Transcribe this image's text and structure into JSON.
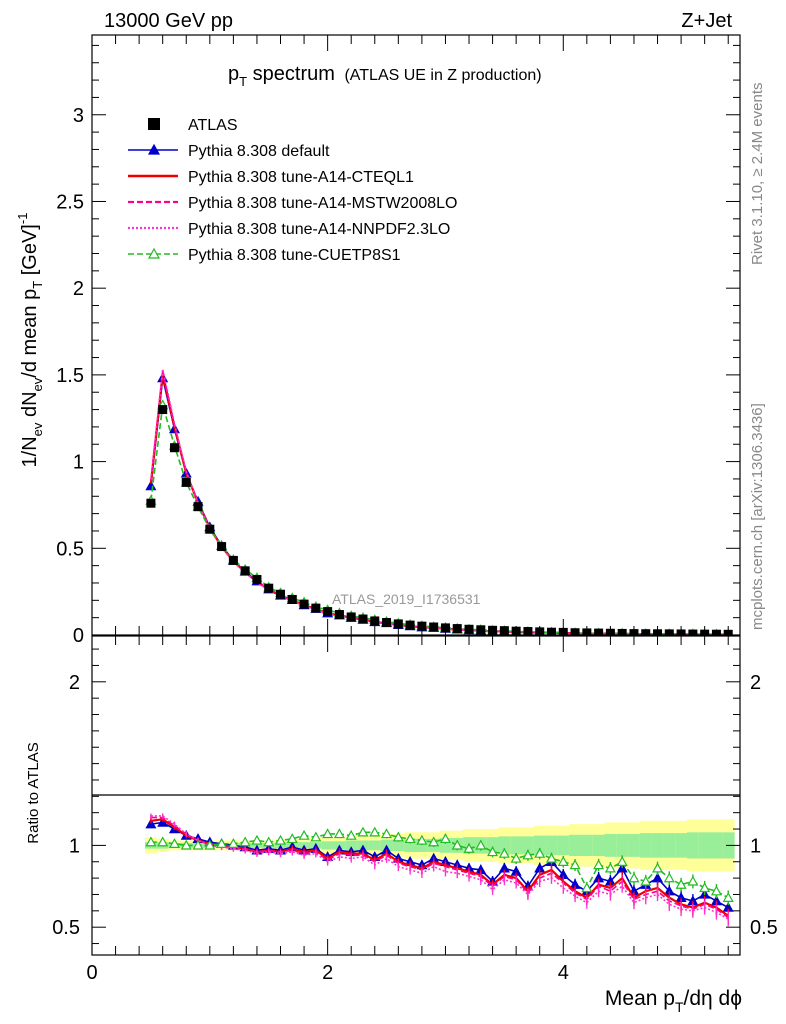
{
  "header": {
    "left": "13000 GeV pp",
    "right": "Z+Jet"
  },
  "title": {
    "main": "p",
    "main_sub": "T",
    "main_rest": " spectrum",
    "small": "(ATLAS UE in Z production)"
  },
  "side": {
    "rivet": "Rivet 3.1.10, ≥ 2.4M events",
    "mcplots": "mcplots.cern.ch [arXiv:1306.3436]"
  },
  "watermark": "ATLAS_2019_I1736531",
  "axes": {
    "upper_ylabel": "1/N_ev dN_ev/d mean p_T [GeV]^-1",
    "lower_ylabel": "Ratio to ATLAS",
    "xlabel": "Mean p_T/dη dϕ"
  },
  "legend": [
    {
      "label": "ATLAS",
      "color": "#000000"
    },
    {
      "label": "Pythia 8.308 default",
      "color": "#0000cc"
    },
    {
      "label": "Pythia 8.308 tune-A14-CTEQL1",
      "color": "#ee0000"
    },
    {
      "label": "Pythia 8.308 tune-A14-MSTW2008LO",
      "color": "#ff0088"
    },
    {
      "label": "Pythia 8.308 tune-A14-NNPDF2.3LO",
      "color": "#ff33cc"
    },
    {
      "label": "Pythia 8.308 tune-CUETP8S1",
      "color": "#22bb22"
    }
  ],
  "chart_data": {
    "type": "line",
    "xlim": [
      0,
      5.5
    ],
    "upper": {
      "ylim": [
        0,
        3.46
      ],
      "yticks": [
        0,
        0.5,
        1,
        1.5,
        2,
        2.5,
        3
      ],
      "ytick_labels": [
        "0",
        "0.5",
        "1",
        "1.5",
        "2",
        "2.5",
        "3"
      ]
    },
    "lower": {
      "ylim": [
        0.33,
        2.28
      ],
      "yticks": [
        0.5,
        1,
        2
      ],
      "ytick_labels": [
        "0.5",
        "1",
        "2"
      ]
    },
    "xticks": [
      0,
      2,
      4
    ],
    "xtick_labels": [
      "0",
      "2",
      "4"
    ],
    "x": [
      0.5,
      0.6,
      0.7,
      0.8,
      0.9,
      1.0,
      1.1,
      1.2,
      1.3,
      1.4,
      1.5,
      1.6,
      1.7,
      1.8,
      1.9,
      2.0,
      2.1,
      2.2,
      2.3,
      2.4,
      2.5,
      2.6,
      2.7,
      2.8,
      2.9,
      3.0,
      3.1,
      3.2,
      3.3,
      3.4,
      3.5,
      3.6,
      3.7,
      3.8,
      3.9,
      4.0,
      4.1,
      4.2,
      4.3,
      4.4,
      4.5,
      4.6,
      4.7,
      4.8,
      4.9,
      5.0,
      5.1,
      5.2,
      5.3,
      5.4
    ],
    "atlas": [
      0.76,
      1.3,
      1.08,
      0.88,
      0.74,
      0.61,
      0.51,
      0.43,
      0.37,
      0.32,
      0.27,
      0.235,
      0.205,
      0.178,
      0.155,
      0.135,
      0.118,
      0.104,
      0.092,
      0.081,
      0.072,
      0.064,
      0.057,
      0.051,
      0.046,
      0.041,
      0.037,
      0.033,
      0.03,
      0.027,
      0.025,
      0.022,
      0.02,
      0.018,
      0.016,
      0.015,
      0.013,
      0.012,
      0.011,
      0.01,
      0.009,
      0.008,
      0.0075,
      0.007,
      0.0065,
      0.006,
      0.0055,
      0.005,
      0.0045,
      0.004
    ],
    "band_yellow": [
      0.05,
      0.04,
      0.03,
      0.03,
      0.03,
      0.03,
      0.03,
      0.03,
      0.03,
      0.03,
      0.03,
      0.04,
      0.04,
      0.04,
      0.05,
      0.05,
      0.05,
      0.06,
      0.06,
      0.06,
      0.07,
      0.07,
      0.08,
      0.08,
      0.08,
      0.09,
      0.09,
      0.1,
      0.1,
      0.1,
      0.11,
      0.11,
      0.11,
      0.12,
      0.12,
      0.12,
      0.13,
      0.13,
      0.13,
      0.14,
      0.14,
      0.14,
      0.15,
      0.15,
      0.15,
      0.15,
      0.16,
      0.16,
      0.16,
      0.16
    ],
    "band_green": [
      0.02,
      0.02,
      0.015,
      0.015,
      0.015,
      0.015,
      0.015,
      0.015,
      0.015,
      0.015,
      0.015,
      0.02,
      0.02,
      0.02,
      0.02,
      0.025,
      0.025,
      0.03,
      0.03,
      0.03,
      0.035,
      0.035,
      0.04,
      0.04,
      0.04,
      0.045,
      0.045,
      0.05,
      0.05,
      0.05,
      0.055,
      0.055,
      0.055,
      0.06,
      0.06,
      0.06,
      0.065,
      0.065,
      0.065,
      0.07,
      0.07,
      0.07,
      0.075,
      0.075,
      0.075,
      0.075,
      0.08,
      0.08,
      0.08,
      0.08
    ],
    "series": [
      {
        "name": "Pythia 8.308 default",
        "color": "#0000cc",
        "style": "solid",
        "marker": "triangle-filled",
        "ratio": [
          1.13,
          1.14,
          1.1,
          1.06,
          1.04,
          1.02,
          1.01,
          1.0,
          0.99,
          0.97,
          0.98,
          0.97,
          0.99,
          0.97,
          0.98,
          0.93,
          0.97,
          0.96,
          0.97,
          0.93,
          0.97,
          0.92,
          0.9,
          0.88,
          0.92,
          0.9,
          0.88,
          0.86,
          0.85,
          0.78,
          0.86,
          0.84,
          0.75,
          0.86,
          0.9,
          0.82,
          0.76,
          0.72,
          0.8,
          0.78,
          0.86,
          0.72,
          0.76,
          0.8,
          0.72,
          0.68,
          0.66,
          0.7,
          0.66,
          0.62
        ]
      },
      {
        "name": "Pythia 8.308 tune-A14-CTEQL1",
        "color": "#ee0000",
        "style": "solid",
        "marker": "none",
        "ratio": [
          1.15,
          1.16,
          1.11,
          1.06,
          1.03,
          1.01,
          1.0,
          0.99,
          0.98,
          0.96,
          0.97,
          0.96,
          0.98,
          0.96,
          0.97,
          0.92,
          0.96,
          0.95,
          0.95,
          0.91,
          0.95,
          0.9,
          0.88,
          0.86,
          0.9,
          0.88,
          0.86,
          0.84,
          0.82,
          0.76,
          0.82,
          0.8,
          0.72,
          0.82,
          0.85,
          0.78,
          0.72,
          0.68,
          0.76,
          0.74,
          0.8,
          0.68,
          0.72,
          0.74,
          0.68,
          0.64,
          0.62,
          0.65,
          0.62,
          0.57
        ]
      },
      {
        "name": "Pythia 8.308 tune-A14-MSTW2008LO",
        "color": "#ff0088",
        "style": "dashed",
        "marker": "none",
        "ratio": [
          1.17,
          1.17,
          1.12,
          1.07,
          1.03,
          1.01,
          1.0,
          0.99,
          0.98,
          0.96,
          0.97,
          0.96,
          0.97,
          0.95,
          0.96,
          0.91,
          0.95,
          0.94,
          0.94,
          0.9,
          0.94,
          0.89,
          0.87,
          0.85,
          0.89,
          0.87,
          0.85,
          0.83,
          0.81,
          0.75,
          0.81,
          0.79,
          0.71,
          0.8,
          0.83,
          0.77,
          0.71,
          0.67,
          0.75,
          0.72,
          0.78,
          0.67,
          0.7,
          0.72,
          0.66,
          0.63,
          0.61,
          0.64,
          0.61,
          0.56
        ]
      },
      {
        "name": "Pythia 8.308 tune-A14-NNPDF2.3LO",
        "color": "#ff33cc",
        "style": "dotted",
        "marker": "none",
        "ratio": [
          1.18,
          1.18,
          1.13,
          1.07,
          1.03,
          1.0,
          0.99,
          0.98,
          0.97,
          0.95,
          0.96,
          0.95,
          0.96,
          0.94,
          0.95,
          0.9,
          0.93,
          0.92,
          0.93,
          0.88,
          0.92,
          0.87,
          0.85,
          0.83,
          0.87,
          0.84,
          0.83,
          0.81,
          0.79,
          0.73,
          0.79,
          0.77,
          0.7,
          0.78,
          0.8,
          0.74,
          0.69,
          0.65,
          0.72,
          0.7,
          0.75,
          0.65,
          0.68,
          0.7,
          0.64,
          0.61,
          0.6,
          0.62,
          0.59,
          0.55
        ]
      },
      {
        "name": "Pythia 8.308 tune-CUETP8S1",
        "color": "#22bb22",
        "style": "dashed",
        "marker": "triangle-open",
        "ratio": [
          1.02,
          1.02,
          1.01,
          1.0,
          1.0,
          1.0,
          1.01,
          1.01,
          1.02,
          1.03,
          1.02,
          1.03,
          1.04,
          1.06,
          1.05,
          1.07,
          1.07,
          1.06,
          1.08,
          1.08,
          1.07,
          1.05,
          1.04,
          1.03,
          1.02,
          1.04,
          1.0,
          0.98,
          1.0,
          0.96,
          0.95,
          0.92,
          0.94,
          0.95,
          0.92,
          0.9,
          0.88,
          0.74,
          0.88,
          0.86,
          0.9,
          0.8,
          0.78,
          0.86,
          0.8,
          0.76,
          0.78,
          0.74,
          0.72,
          0.68
        ]
      }
    ]
  }
}
